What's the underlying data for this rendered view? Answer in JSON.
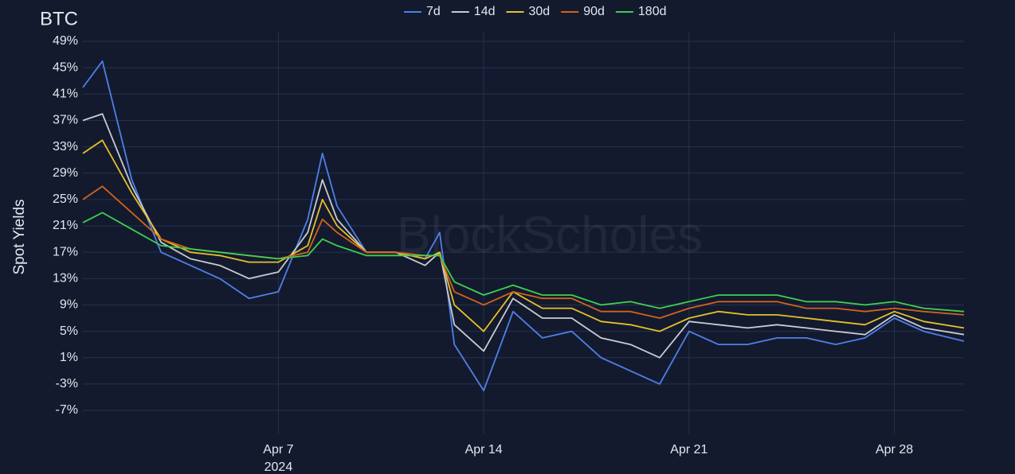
{
  "chart_data": {
    "type": "line",
    "title": "BTC",
    "y_label": "Spot Yields",
    "watermark": "BlockScholes",
    "x_year_label": "2024",
    "x": [
      "2024-03-31T08:00",
      "2024-04-01",
      "2024-04-02",
      "2024-04-03",
      "2024-04-04",
      "2024-04-05",
      "2024-04-06",
      "2024-04-07",
      "2024-04-08",
      "2024-04-08T12:00",
      "2024-04-09",
      "2024-04-10",
      "2024-04-11",
      "2024-04-12",
      "2024-04-12T12:00",
      "2024-04-13",
      "2024-04-14",
      "2024-04-15",
      "2024-04-16",
      "2024-04-17",
      "2024-04-18",
      "2024-04-19",
      "2024-04-20",
      "2024-04-21",
      "2024-04-22",
      "2024-04-23",
      "2024-04-24",
      "2024-04-25",
      "2024-04-26",
      "2024-04-27",
      "2024-04-28",
      "2024-04-29",
      "2024-04-30T09:00"
    ],
    "series": [
      {
        "name": "7d",
        "color": "#4f7fe8",
        "values": [
          42,
          46,
          28,
          17,
          15,
          13,
          10,
          11,
          22,
          32,
          24,
          17,
          17,
          16,
          20,
          3,
          -4,
          8,
          4,
          5,
          1,
          -1,
          -3,
          5,
          3,
          3,
          4,
          4,
          3,
          4,
          7,
          5,
          3.5
        ]
      },
      {
        "name": "14d",
        "color": "#c9cbd1",
        "values": [
          37,
          38,
          27,
          18.5,
          16,
          15,
          13,
          14,
          20,
          28,
          22,
          17,
          17,
          15,
          17,
          6,
          2,
          10,
          7,
          7,
          4,
          3,
          1,
          6.5,
          6,
          5.5,
          6,
          5.5,
          5,
          4.5,
          7.5,
          5.5,
          4.5
        ]
      },
      {
        "name": "30d",
        "color": "#e6c02a",
        "values": [
          32,
          34,
          26,
          19,
          17,
          16.5,
          15.5,
          15.5,
          18,
          25,
          21,
          17,
          17,
          16,
          17,
          9,
          5,
          11,
          8.5,
          8.5,
          6.5,
          6,
          5,
          7,
          8,
          7.5,
          7.5,
          7,
          6.5,
          6,
          8,
          6.5,
          5.5
        ]
      },
      {
        "name": "90d",
        "color": "#d2621c",
        "values": [
          25,
          27,
          23,
          19,
          17.5,
          17,
          16.5,
          16,
          17,
          22,
          20,
          17,
          17,
          16.5,
          16.5,
          11,
          9,
          11,
          10,
          10,
          8,
          8,
          7,
          8.5,
          9.5,
          9.5,
          9.5,
          8.5,
          8.5,
          8,
          8.5,
          8,
          7.5
        ]
      },
      {
        "name": "180d",
        "color": "#3fcf50",
        "values": [
          21.5,
          23,
          20.5,
          18,
          17.5,
          17,
          16.5,
          16,
          16.5,
          19,
          18,
          16.5,
          16.5,
          16.5,
          16.5,
          12.5,
          10.5,
          12,
          10.5,
          10.5,
          9,
          9.5,
          8.5,
          9.5,
          10.5,
          10.5,
          10.5,
          9.5,
          9.5,
          9,
          9.5,
          8.5,
          8
        ]
      }
    ],
    "xlim": [
      "2024-03-31T08:00",
      "2024-04-30T09:00"
    ],
    "xticks": [
      {
        "value": "2024-04-07",
        "label": "Apr 7"
      },
      {
        "value": "2024-04-14",
        "label": "Apr 14"
      },
      {
        "value": "2024-04-21",
        "label": "Apr 21"
      },
      {
        "value": "2024-04-28",
        "label": "Apr 28"
      }
    ],
    "ylim": [
      -10.5,
      50.5
    ],
    "yticks": [
      {
        "value": 49,
        "label": "49%"
      },
      {
        "value": 45,
        "label": "45%"
      },
      {
        "value": 41,
        "label": "41%"
      },
      {
        "value": 37,
        "label": "37%"
      },
      {
        "value": 33,
        "label": "33%"
      },
      {
        "value": 29,
        "label": "29%"
      },
      {
        "value": 25,
        "label": "25%"
      },
      {
        "value": 21,
        "label": "21%"
      },
      {
        "value": 17,
        "label": "17%"
      },
      {
        "value": 13,
        "label": "13%"
      },
      {
        "value": 9,
        "label": "9%"
      },
      {
        "value": 5,
        "label": "5%"
      },
      {
        "value": 1,
        "label": "1%"
      },
      {
        "value": -3,
        "label": "-3%"
      },
      {
        "value": -7,
        "label": "-7%"
      }
    ],
    "grid": true,
    "legend": "top"
  }
}
